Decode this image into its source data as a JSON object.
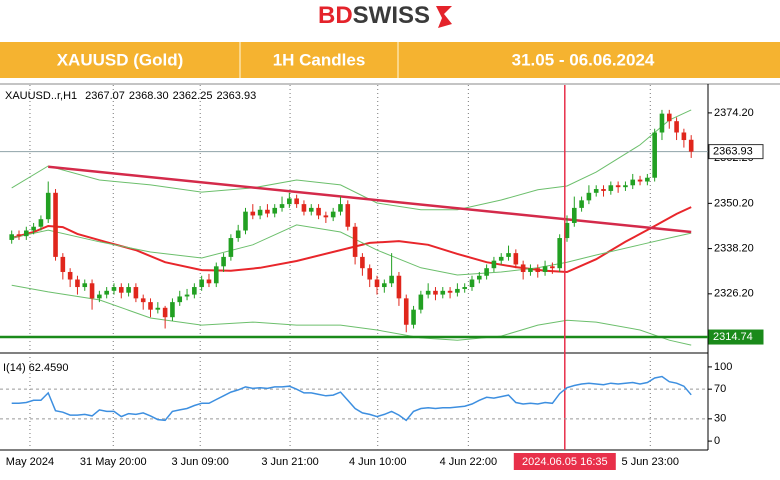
{
  "header": {
    "logo_bd": "BD",
    "logo_swiss": "SWISS",
    "cells": [
      "XAUUSD (Gold)",
      "1H Candles",
      "31.05 - 06.06.2024"
    ]
  },
  "chart_data": [
    {
      "type": "candlestick",
      "symbol": "XAUUSD..r,H1",
      "ohlc_info": [
        "2367.07",
        "2368.30",
        "2362.25",
        "2363.93"
      ],
      "up_color": "#22a022",
      "down_color": "#e0261c",
      "xlim": [
        -1.6,
        95.3
      ],
      "ylim": [
        2311.3,
        2381.6
      ],
      "yticks": [
        {
          "value": 2374.2,
          "label": "2374.20"
        },
        {
          "value": 2362.2,
          "label": "2362.20"
        },
        {
          "value": 2350.2,
          "label": "2350.20"
        },
        {
          "value": 2338.2,
          "label": "2338.20"
        },
        {
          "value": 2326.2,
          "label": "2326.20"
        }
      ],
      "xticks": [
        {
          "value": 2.5,
          "label": "May 2024"
        },
        {
          "value": 13.9,
          "label": "31 May 20:00"
        },
        {
          "value": 25.8,
          "label": "3 Jun 09:00"
        },
        {
          "value": 38.1,
          "label": "3 Jun 21:00"
        },
        {
          "value": 50.1,
          "label": "4 Jun 10:00"
        },
        {
          "value": 62.5,
          "label": "4 Jun 22:00"
        },
        {
          "value": 87.4,
          "label": "5 Jun 23:00"
        }
      ],
      "open": [
        2340.5,
        2342,
        2341.5,
        2343,
        2344,
        2346,
        2353,
        2336,
        2332,
        2330,
        2328,
        2329,
        2325,
        2326,
        2327,
        2328,
        2326.5,
        2328,
        2325,
        2324,
        2322,
        2322.5,
        2320,
        2324,
        2325.5,
        2326,
        2328,
        2330,
        2329,
        2333.5,
        2336,
        2341,
        2343,
        2348,
        2347,
        2348.5,
        2347.5,
        2349,
        2350,
        2351.5,
        2350,
        2348,
        2349,
        2347,
        2346.5,
        2348,
        2350,
        2344,
        2336,
        2333,
        2330,
        2328,
        2329,
        2331,
        2325,
        2318,
        2322,
        2326,
        2327,
        2326,
        2327,
        2326.5,
        2327.5,
        2328,
        2330,
        2331,
        2333,
        2335,
        2336,
        2337,
        2334,
        2332,
        2333,
        2332,
        2333.5,
        2333,
        2341,
        2345,
        2349,
        2351,
        2353,
        2354,
        2353.5,
        2355,
        2354.5,
        2355,
        2356.5,
        2356,
        2357,
        2369,
        2374,
        2372,
        2369,
        2367.07
      ],
      "high": [
        2343,
        2343,
        2344,
        2345,
        2347,
        2356,
        2354,
        2337,
        2333,
        2331,
        2330,
        2330,
        2327,
        2328,
        2329,
        2329,
        2329,
        2329,
        2326,
        2325,
        2324,
        2323,
        2325,
        2327,
        2327.5,
        2329,
        2331,
        2331.5,
        2334.5,
        2337,
        2342,
        2344.5,
        2349,
        2350,
        2349.5,
        2350,
        2350,
        2352,
        2353,
        2352.5,
        2351,
        2350,
        2350,
        2348,
        2349,
        2352,
        2351,
        2345,
        2337,
        2334,
        2331,
        2330,
        2337,
        2332,
        2326,
        2323,
        2327,
        2329,
        2328,
        2328,
        2328,
        2329,
        2329,
        2331,
        2332,
        2334,
        2336,
        2337,
        2339,
        2338,
        2335,
        2334,
        2334,
        2335,
        2334.5,
        2342,
        2347,
        2352,
        2352,
        2355,
        2355,
        2355,
        2356,
        2356,
        2356,
        2358,
        2357.5,
        2358,
        2370,
        2375,
        2375,
        2373,
        2370,
        2368.3
      ],
      "low": [
        2339.5,
        2340.5,
        2340.5,
        2342,
        2343,
        2345,
        2335,
        2330,
        2328,
        2326,
        2327,
        2322,
        2324,
        2325,
        2326,
        2325,
        2325.5,
        2324,
        2322,
        2320,
        2321,
        2317,
        2319,
        2323,
        2324.5,
        2325,
        2327,
        2328,
        2328,
        2332,
        2335,
        2340,
        2342,
        2346,
        2346,
        2346.5,
        2346.5,
        2348,
        2349,
        2349,
        2347,
        2347,
        2346,
        2345,
        2345.5,
        2347,
        2343,
        2334,
        2331,
        2328,
        2326,
        2326.5,
        2328,
        2323,
        2316,
        2317,
        2321,
        2325,
        2324.5,
        2325,
        2325,
        2325.5,
        2326.5,
        2327,
        2329,
        2330,
        2332,
        2334,
        2335,
        2333,
        2330,
        2331,
        2330.5,
        2331,
        2331.5,
        2332,
        2340,
        2344,
        2348,
        2350,
        2352,
        2352,
        2352.5,
        2353,
        2353.5,
        2354,
        2355,
        2355,
        2356,
        2367,
        2370,
        2367,
        2365,
        2362.25
      ],
      "close": [
        2342,
        2341.5,
        2343,
        2344,
        2346,
        2353,
        2336,
        2332,
        2330,
        2328,
        2329,
        2325,
        2326,
        2327,
        2328,
        2326.5,
        2328,
        2325,
        2324,
        2322,
        2322.5,
        2320,
        2324,
        2325.5,
        2326,
        2328,
        2330,
        2329,
        2333.5,
        2336,
        2341,
        2343,
        2348,
        2347,
        2348.5,
        2347.5,
        2349,
        2350,
        2351.5,
        2350,
        2348,
        2349,
        2347,
        2346.5,
        2348,
        2350,
        2344,
        2336,
        2333,
        2330,
        2328,
        2329,
        2331,
        2325,
        2318,
        2322,
        2326,
        2327,
        2326,
        2327,
        2326.5,
        2327.5,
        2328,
        2330,
        2331,
        2333,
        2335,
        2336,
        2337,
        2334,
        2332,
        2333,
        2332,
        2333.5,
        2333,
        2341,
        2345,
        2349,
        2351,
        2353,
        2354,
        2353.5,
        2355,
        2354.5,
        2355,
        2356.5,
        2356,
        2357,
        2369,
        2374,
        2372,
        2369,
        2367,
        2363.93
      ],
      "lines": [
        {
          "color": "#e8262b",
          "x": [
            0,
            3,
            5,
            7,
            9,
            13,
            17,
            21,
            26,
            30,
            34,
            39,
            45,
            49,
            53,
            57,
            61,
            65,
            69,
            73,
            76,
            80,
            84,
            88,
            91,
            93
          ],
          "values": [
            2341.0,
            2342.6,
            2344.2,
            2343.9,
            2342.1,
            2339.9,
            2337.8,
            2334.6,
            2332.5,
            2332.3,
            2333.1,
            2334.9,
            2337.8,
            2339.7,
            2340.2,
            2339.2,
            2336.8,
            2334.6,
            2333.3,
            2332.3,
            2332.0,
            2335.4,
            2340.0,
            2344.2,
            2347.4,
            2349.2
          ]
        },
        {
          "color": "#6cbf6c",
          "x": [
            0,
            5,
            12,
            19,
            26,
            33,
            39,
            45,
            50,
            56,
            61,
            67,
            72,
            76,
            80,
            86,
            90,
            93
          ],
          "values": [
            2354.3,
            2360.1,
            2356.4,
            2355.1,
            2353.2,
            2354.3,
            2356.4,
            2355.1,
            2350.3,
            2348.5,
            2348.5,
            2351.1,
            2353.8,
            2354.8,
            2358.5,
            2365.7,
            2372.3,
            2375.0
          ]
        },
        {
          "color": "#6cbf6c",
          "x": [
            0,
            5,
            12,
            19,
            26,
            33,
            39,
            45,
            50,
            56,
            61,
            67,
            72,
            76,
            80,
            86,
            90,
            93
          ],
          "values": [
            2341.0,
            2343.1,
            2340.0,
            2337.3,
            2335.7,
            2339.2,
            2344.5,
            2342.6,
            2337.8,
            2333.1,
            2331.2,
            2332.0,
            2333.1,
            2334.6,
            2336.5,
            2339.2,
            2341.0,
            2342.3
          ]
        },
        {
          "color": "#6cbf6c",
          "x": [
            0,
            5,
            12,
            19,
            26,
            33,
            39,
            45,
            50,
            56,
            61,
            67,
            72,
            76,
            80,
            86,
            90,
            93
          ],
          "values": [
            2328.5,
            2326.7,
            2324.6,
            2319.8,
            2317.9,
            2318.7,
            2317.9,
            2317.9,
            2316.6,
            2314.5,
            2313.9,
            2315.0,
            2317.9,
            2319.2,
            2318.7,
            2316.6,
            2313.9,
            2312.6
          ]
        },
        {
          "color": "#d42a4a",
          "x": [
            5,
            93
          ],
          "values": [
            2359.9,
            2342.6
          ]
        }
      ],
      "hlines": [
        {
          "value": 2314.74,
          "color": "#1a8a1a",
          "box": "#1a8a1a",
          "text_color": "#ffffff"
        },
        {
          "value": 2363.93,
          "color": "#8fa3a8",
          "box": "#ffffff",
          "text_color": "#000000"
        }
      ],
      "cursor": {
        "value": 75.7,
        "label": "2024.06.05 16:35",
        "color": "#e8304a"
      }
    },
    {
      "type": "line",
      "title": "I(14) 62.4590",
      "color": "#3d8fe0",
      "ylim": [
        -12,
        112
      ],
      "yticks": [
        0,
        30,
        70,
        100
      ],
      "levels": [
        30,
        70
      ],
      "values": [
        51,
        51,
        52,
        55,
        55,
        65,
        41,
        39,
        35,
        35,
        36,
        34,
        42,
        40,
        40,
        33,
        37,
        36,
        38,
        34,
        29,
        28,
        40,
        42,
        44,
        48,
        51,
        51,
        56,
        61,
        66,
        69,
        73,
        71,
        72,
        71,
        73,
        73,
        74,
        70,
        65,
        65,
        63,
        61,
        62,
        66,
        55,
        44,
        38,
        36,
        33,
        36,
        40,
        35,
        28,
        40,
        44,
        45,
        44,
        45,
        45,
        46,
        47,
        50,
        55,
        59,
        58,
        60,
        62,
        52,
        50,
        51,
        50,
        52,
        51,
        64,
        72,
        75,
        77,
        78,
        77,
        76,
        78,
        77,
        78,
        79,
        77,
        79,
        85,
        87,
        80,
        78,
        74,
        62.459
      ]
    }
  ]
}
